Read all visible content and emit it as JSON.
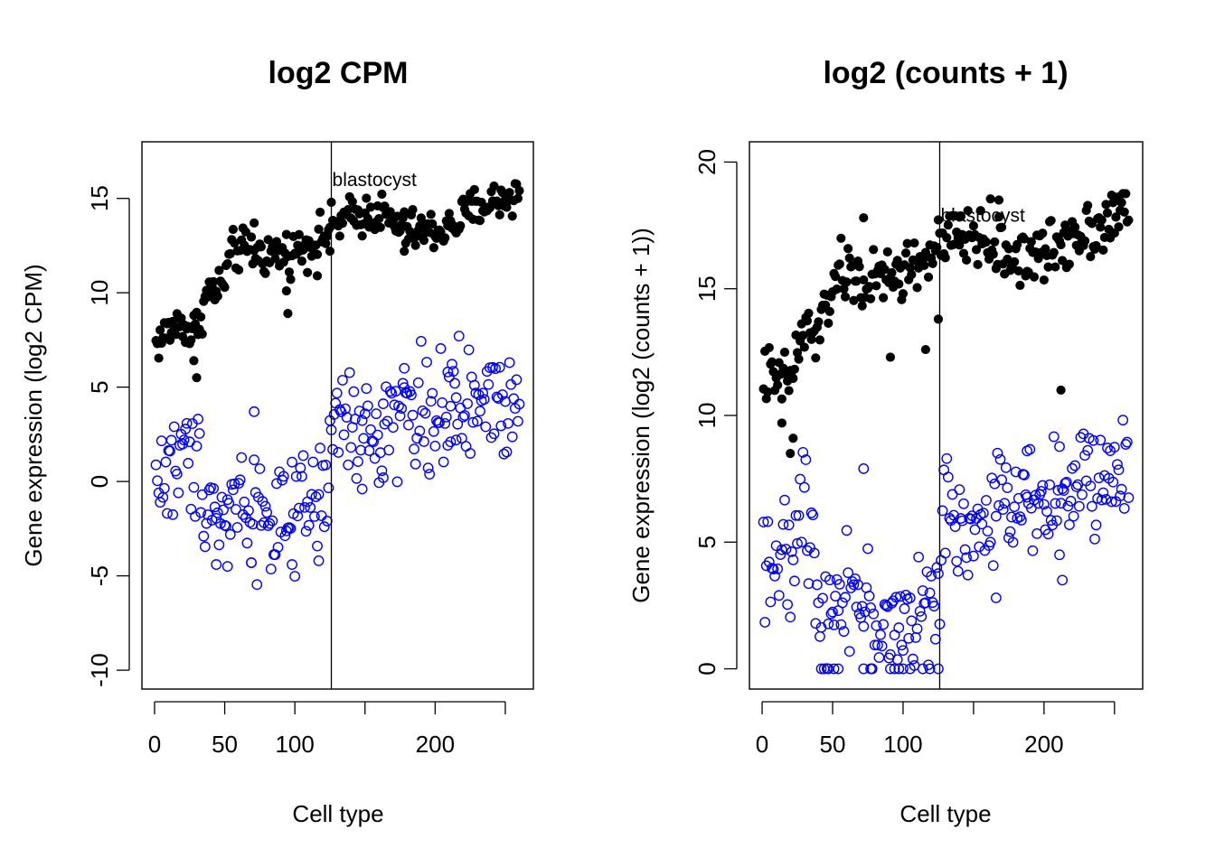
{
  "chart_data": [
    {
      "type": "scatter",
      "title": "log2 CPM",
      "xlabel": "Cell type",
      "ylabel": "Gene expression (log2 CPM)",
      "xlim": [
        -9,
        270
      ],
      "ylim": [
        -11,
        18
      ],
      "xticks": [
        0,
        50,
        100,
        150,
        200,
        250
      ],
      "xtick_labels": [
        "0",
        "50",
        "100",
        "",
        "200",
        ""
      ],
      "yticks": [
        -10,
        -5,
        0,
        5,
        10,
        15
      ],
      "ytick_labels": [
        "-10",
        "-5",
        "0",
        "5",
        "10",
        "15"
      ],
      "vline": 126,
      "annotation": {
        "text": "blastocyst",
        "x": 126,
        "y": 16
      },
      "grid": false,
      "series": [
        {
          "style": "filled",
          "color": "#000000",
          "knots_x": [
            0,
            10,
            20,
            25,
            30,
            38,
            48,
            55,
            65,
            80,
            100,
            120,
            126,
            140,
            160,
            175,
            190,
            210,
            230,
            250,
            260
          ],
          "knots_y": [
            7.2,
            8.0,
            8.5,
            7.8,
            8.2,
            10.0,
            10.3,
            12.1,
            12.3,
            12.0,
            12.2,
            13.0,
            13.5,
            14.0,
            14.3,
            13.4,
            13.2,
            13.4,
            14.6,
            15.0,
            15.3
          ],
          "noise": 0.55,
          "outliers": [
            [
              30,
              5.5
            ],
            [
              28,
              6.4
            ],
            [
              95,
              8.9
            ],
            [
              94,
              10.1
            ],
            [
              116,
              10.9
            ],
            [
              71,
              13.7
            ],
            [
              125,
              12.2
            ],
            [
              178,
              12.2
            ]
          ]
        },
        {
          "style": "open",
          "color": "#0000ff",
          "knots_x": [
            0,
            10,
            20,
            30,
            40,
            50,
            60,
            70,
            80,
            90,
            100,
            110,
            120,
            126,
            130,
            140,
            150,
            160,
            170,
            185,
            200,
            220,
            240,
            260
          ],
          "knots_y": [
            0.2,
            0.4,
            1.3,
            1.0,
            -1.0,
            -2.0,
            -0.5,
            -1.5,
            -1.8,
            -2.3,
            -2.5,
            -1.3,
            -0.8,
            1.0,
            3.7,
            2.8,
            2.2,
            2.6,
            3.9,
            3.7,
            3.9,
            3.7,
            4.3,
            4.5
          ],
          "noise": 1.5,
          "outliers": [
            [
              71,
              3.7
            ],
            [
              44,
              -4.4
            ],
            [
              52,
              -4.5
            ],
            [
              69,
              -4.3
            ],
            [
              98,
              -4.4
            ],
            [
              117,
              -4.2
            ],
            [
              148,
              -0.4
            ],
            [
              163,
              0.2
            ],
            [
              178,
              6.0
            ],
            [
              209,
              5.8
            ],
            [
              211,
              2.1
            ],
            [
              215,
              2.2
            ]
          ]
        }
      ]
    },
    {
      "type": "scatter",
      "title": "log2 (counts + 1)",
      "xlabel": "Cell type",
      "ylabel": "Gene expression (log2 (counts + 1))",
      "xlim": [
        -9,
        270
      ],
      "ylim": [
        -0.8,
        20.8
      ],
      "xticks": [
        0,
        50,
        100,
        150,
        200,
        250
      ],
      "xtick_labels": [
        "0",
        "50",
        "100",
        "",
        "200",
        ""
      ],
      "yticks": [
        0,
        5,
        10,
        15,
        20
      ],
      "ytick_labels": [
        "0",
        "5",
        "10",
        "15",
        "20"
      ],
      "vline": 126,
      "annotation": {
        "text": "blastocyst",
        "x": 126,
        "y": 17.9
      },
      "grid": false,
      "series": [
        {
          "style": "filled",
          "color": "#000000",
          "knots_x": [
            0,
            10,
            20,
            25,
            32,
            40,
            50,
            60,
            75,
            90,
            110,
            126,
            140,
            160,
            175,
            200,
            220,
            240,
            260
          ],
          "knots_y": [
            11.8,
            11.2,
            11.5,
            12.5,
            13.5,
            13.0,
            15.3,
            15.6,
            15.2,
            15.4,
            16.0,
            16.6,
            17.1,
            17.0,
            16.3,
            16.3,
            17.2,
            17.6,
            18.0
          ],
          "noise": 0.6,
          "outliers": [
            [
              20,
              8.5
            ],
            [
              22,
              9.1
            ],
            [
              14,
              9.7
            ],
            [
              72,
              17.8
            ],
            [
              91,
              12.3
            ],
            [
              116,
              12.6
            ],
            [
              125,
              13.8
            ],
            [
              212,
              11.0
            ],
            [
              168,
              18.5
            ]
          ]
        },
        {
          "style": "open",
          "color": "#0000ff",
          "knots_x": [
            0,
            10,
            20,
            25,
            30,
            40,
            50,
            60,
            70,
            80,
            90,
            100,
            110,
            120,
            126,
            130,
            140,
            150,
            160,
            170,
            185,
            200,
            220,
            240,
            260
          ],
          "knots_y": [
            4.8,
            4.3,
            3.8,
            5.5,
            6.8,
            3.0,
            2.2,
            3.8,
            2.5,
            1.8,
            1.5,
            1.8,
            2.2,
            2.5,
            2.0,
            7.0,
            6.2,
            5.0,
            5.5,
            6.8,
            7.0,
            6.9,
            7.0,
            7.5,
            7.8
          ],
          "noise": 1.1,
          "outliers": [
            [
              72,
              7.9
            ],
            [
              188,
              8.6
            ],
            [
              213,
              3.5
            ],
            [
              211,
              4.5
            ],
            [
              166,
              2.8
            ],
            [
              42,
              0
            ],
            [
              47,
              0
            ],
            [
              51,
              0
            ],
            [
              54,
              0
            ],
            [
              72,
              0
            ],
            [
              77,
              0
            ],
            [
              78,
              0
            ],
            [
              91,
              0
            ],
            [
              94,
              0
            ],
            [
              97,
              0
            ],
            [
              100,
              0
            ],
            [
              105,
              0
            ],
            [
              114,
              0
            ],
            [
              119,
              0
            ],
            [
              125,
              0
            ]
          ]
        }
      ]
    }
  ]
}
